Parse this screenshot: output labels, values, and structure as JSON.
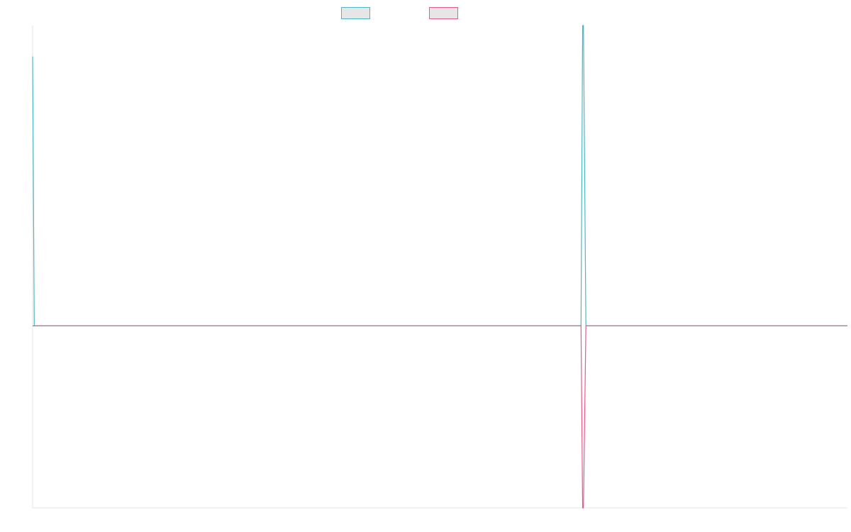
{
  "chart_data": {
    "type": "line",
    "title": "",
    "xlabel": "",
    "ylabel": "",
    "xlim": [
      0,
      100
    ],
    "ylim": [
      -100,
      165
    ],
    "grid": false,
    "legend": {
      "placement": "top-center",
      "entries": [
        {
          "name": "",
          "stroke": "#4bb8c5",
          "fill": "#e6e6e6"
        },
        {
          "name": "",
          "stroke": "#ea5a85",
          "fill": "#e6e6e6"
        }
      ]
    },
    "series": [
      {
        "name": "",
        "color": "#4bb8c5",
        "x": [
          0,
          0.2,
          0.3,
          67,
          67.3,
          67.5,
          67.6,
          67.9,
          100
        ],
        "y": [
          148,
          0,
          0,
          0,
          0,
          165,
          165,
          0,
          0
        ]
      },
      {
        "name": "",
        "color": "#ea5a85",
        "x": [
          0,
          67,
          67.3,
          67.5,
          67.6,
          67.9,
          100
        ],
        "y": [
          0,
          0,
          0,
          -100,
          -100,
          0,
          0
        ]
      }
    ]
  }
}
